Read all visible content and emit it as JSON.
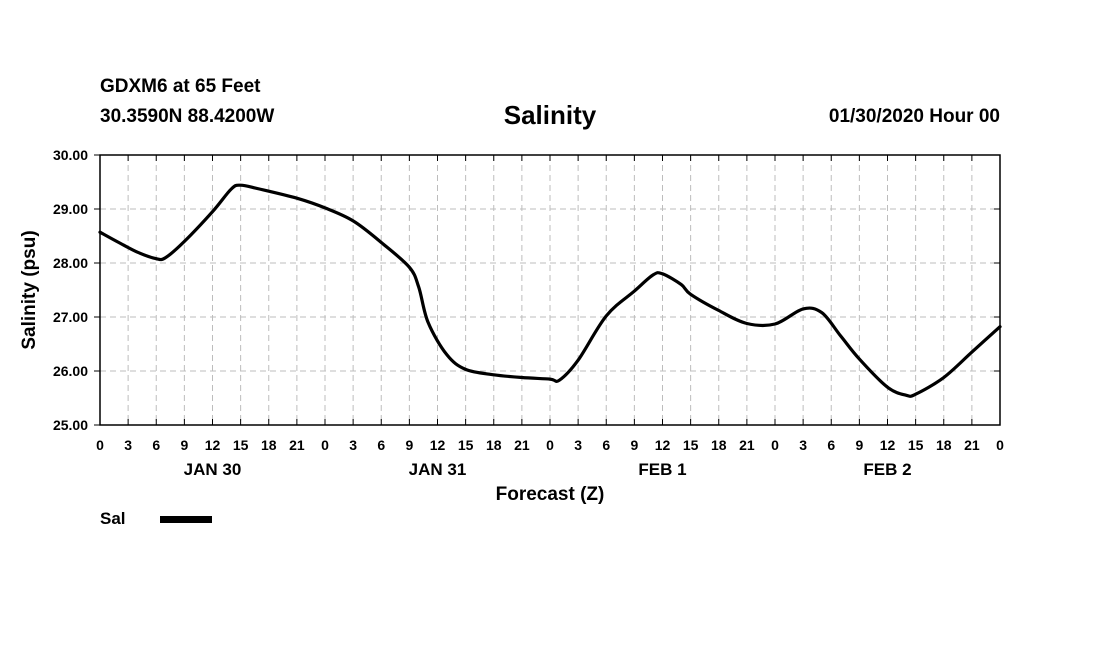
{
  "header": {
    "station": "GDXM6 at 65 Feet",
    "coordinates": "30.3590N 88.4200W",
    "title": "Salinity",
    "date": "01/30/2020 Hour 00"
  },
  "chart_data": {
    "type": "line",
    "title": "Salinity",
    "xlabel": "Forecast (Z)",
    "ylabel": "Salinity (psu)",
    "xlim": [
      0,
      96
    ],
    "ylim": [
      25.0,
      30.0
    ],
    "grid": true,
    "x_tick_hours": [
      0,
      3,
      6,
      9,
      12,
      15,
      18,
      21,
      24,
      27,
      30,
      33,
      36,
      39,
      42,
      45,
      48,
      51,
      54,
      57,
      60,
      63,
      66,
      69,
      72,
      75,
      78,
      81,
      84,
      87,
      90,
      93,
      96
    ],
    "x_tick_labels": [
      "0",
      "3",
      "6",
      "9",
      "12",
      "15",
      "18",
      "21",
      "0",
      "3",
      "6",
      "9",
      "12",
      "15",
      "18",
      "21",
      "0",
      "3",
      "6",
      "9",
      "12",
      "15",
      "18",
      "21",
      "0",
      "3",
      "6",
      "9",
      "12",
      "15",
      "18",
      "21",
      "0"
    ],
    "y_ticks": [
      25.0,
      26.0,
      27.0,
      28.0,
      29.0,
      30.0
    ],
    "y_tick_labels": [
      "25.00",
      "26.00",
      "27.00",
      "28.00",
      "29.00",
      "30.00"
    ],
    "day_labels": [
      {
        "hour": 12,
        "label": "JAN 30"
      },
      {
        "hour": 36,
        "label": "JAN 31"
      },
      {
        "hour": 60,
        "label": "FEB 1"
      },
      {
        "hour": 84,
        "label": "FEB 2"
      }
    ],
    "series": [
      {
        "name": "Sal",
        "color": "#000000",
        "x": [
          0,
          2,
          4,
          6,
          7,
          9,
          12,
          14,
          15,
          17,
          21,
          24,
          27,
          30,
          33,
          34,
          35,
          37,
          39,
          42,
          45,
          48,
          49,
          51,
          54,
          57,
          59,
          60,
          62,
          63,
          66,
          69,
          72,
          75,
          77,
          79,
          81,
          84,
          86,
          87,
          90,
          93,
          96
        ],
        "values": [
          28.57,
          28.38,
          28.2,
          28.08,
          28.1,
          28.4,
          28.95,
          29.37,
          29.44,
          29.37,
          29.2,
          29.02,
          28.78,
          28.38,
          27.92,
          27.55,
          26.9,
          26.3,
          26.03,
          25.93,
          25.88,
          25.85,
          25.83,
          26.2,
          27.02,
          27.48,
          27.78,
          27.8,
          27.6,
          27.42,
          27.12,
          26.88,
          26.87,
          27.15,
          27.08,
          26.65,
          26.22,
          25.7,
          25.55,
          25.57,
          25.88,
          26.35,
          26.82
        ]
      }
    ]
  },
  "legend": {
    "label": "Sal"
  }
}
